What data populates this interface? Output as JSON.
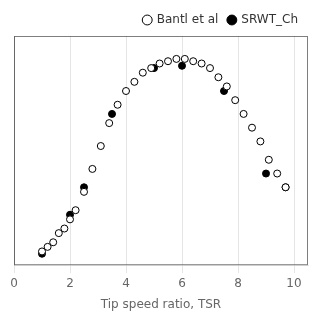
{
  "chart_data": {
    "type": "scatter",
    "xlabel": "Tip speed ratio, TSR",
    "xlim": [
      0,
      10.5
    ],
    "ylim": [
      0.02,
      0.52
    ],
    "xticks": [
      0,
      2,
      4,
      6,
      8,
      10
    ],
    "grid": true,
    "tick_labels": "x",
    "legend": "upper right",
    "series": [
      {
        "name": "Bantl et al",
        "color": "black",
        "marker": "open_circle",
        "x": [
          1.0,
          1.2,
          1.4,
          1.6,
          1.8,
          2.0,
          2.2,
          2.5,
          2.8,
          3.1,
          3.4,
          3.7,
          4.0,
          4.3,
          4.6,
          4.9,
          5.2,
          5.5,
          5.8,
          6.1,
          6.4,
          6.7,
          7.0,
          7.3,
          7.6,
          7.9,
          8.2,
          8.5,
          8.8,
          9.1,
          9.4,
          9.7
        ],
        "values": [
          0.05,
          0.06,
          0.07,
          0.09,
          0.1,
          0.12,
          0.14,
          0.18,
          0.23,
          0.28,
          0.33,
          0.37,
          0.4,
          0.42,
          0.44,
          0.45,
          0.46,
          0.465,
          0.47,
          0.47,
          0.465,
          0.46,
          0.45,
          0.43,
          0.41,
          0.38,
          0.35,
          0.32,
          0.29,
          0.25,
          0.22,
          0.19
        ]
      },
      {
        "name": "SRWT_Ch",
        "color": "black",
        "marker": "circle",
        "x": [
          1.0,
          2.0,
          2.5,
          3.5,
          5.0,
          6.0,
          7.5,
          9.0,
          9.7
        ],
        "values": [
          0.045,
          0.13,
          0.19,
          0.35,
          0.45,
          0.455,
          0.4,
          0.22,
          0.19
        ]
      }
    ]
  }
}
